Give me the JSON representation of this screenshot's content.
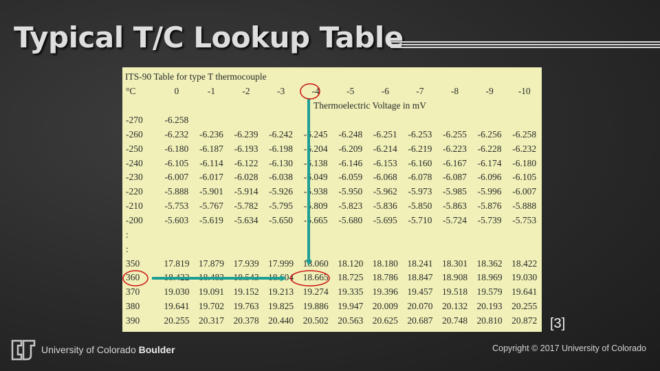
{
  "slide": {
    "title": "Typical T/C Lookup Table",
    "citation": "[3]"
  },
  "table": {
    "caption": "ITS-90 Table for type T thermocouple",
    "header": [
      "°C",
      "0",
      "-1",
      "-2",
      "-3",
      "-4",
      "-5",
      "-6",
      "-7",
      "-8",
      "-9",
      "-10"
    ],
    "unit_caption": "Thermoelectric Voltage in mV",
    "rows": [
      [
        "-270",
        "-6.258",
        "",
        "",
        "",
        "",
        "",
        "",
        "",
        "",
        "",
        ""
      ],
      [
        "-260",
        "-6.232",
        "-6.236",
        "-6.239",
        "-6.242",
        "-6.245",
        "-6.248",
        "-6.251",
        "-6.253",
        "-6.255",
        "-6.256",
        "-6.258"
      ],
      [
        "-250",
        "-6.180",
        "-6.187",
        "-6.193",
        "-6.198",
        "-6.204",
        "-6.209",
        "-6.214",
        "-6.219",
        "-6.223",
        "-6.228",
        "-6.232"
      ],
      [
        "-240",
        "-6.105",
        "-6.114",
        "-6.122",
        "-6.130",
        "-6.138",
        "-6.146",
        "-6.153",
        "-6.160",
        "-6.167",
        "-6.174",
        "-6.180"
      ],
      [
        "-230",
        "-6.007",
        "-6.017",
        "-6.028",
        "-6.038",
        "-6.049",
        "-6.059",
        "-6.068",
        "-6.078",
        "-6.087",
        "-6.096",
        "-6.105"
      ],
      [
        "-220",
        "-5.888",
        "-5.901",
        "-5.914",
        "-5.926",
        "-5.938",
        "-5.950",
        "-5.962",
        "-5.973",
        "-5.985",
        "-5.996",
        "-6.007"
      ],
      [
        "-210",
        "-5.753",
        "-5.767",
        "-5.782",
        "-5.795",
        "-5.809",
        "-5.823",
        "-5.836",
        "-5.850",
        "-5.863",
        "-5.876",
        "-5.888"
      ],
      [
        "-200",
        "-5.603",
        "-5.619",
        "-5.634",
        "-5.650",
        "-5.665",
        "-5.680",
        "-5.695",
        "-5.710",
        "-5.724",
        "-5.739",
        "-5.753"
      ],
      [
        ":",
        "",
        "",
        "",
        "",
        "",
        "",
        "",
        "",
        "",
        "",
        ""
      ],
      [
        ":",
        "",
        "",
        "",
        "",
        "",
        "",
        "",
        "",
        "",
        "",
        ""
      ],
      [
        "350",
        "17.819",
        "17.879",
        "17.939",
        "17.999",
        "18.060",
        "18.120",
        "18.180",
        "18.241",
        "18.301",
        "18.362",
        "18.422"
      ],
      [
        "360",
        "18.422",
        "18.483",
        "18.543",
        "18.604",
        "18.665",
        "18.725",
        "18.786",
        "18.847",
        "18.908",
        "18.969",
        "19.030"
      ],
      [
        "370",
        "19.030",
        "19.091",
        "19.152",
        "19.213",
        "19.274",
        "19.335",
        "19.396",
        "19.457",
        "19.518",
        "19.579",
        "19.641"
      ],
      [
        "380",
        "19.641",
        "19.702",
        "19.763",
        "19.825",
        "19.886",
        "19.947",
        "20.009",
        "20.070",
        "20.132",
        "20.193",
        "20.255"
      ],
      [
        "390",
        "20.255",
        "20.317",
        "20.378",
        "20.440",
        "20.502",
        "20.563",
        "20.625",
        "20.687",
        "20.748",
        "20.810",
        "20.872"
      ]
    ]
  },
  "annotations": {
    "arrow_color": "#1f9e95",
    "circle_color": "#cc1111",
    "circled_values": [
      "-4",
      "360",
      "18.665"
    ]
  },
  "footer": {
    "university": "University of Colorado",
    "campus": "Boulder",
    "copyright": "Copyright © 2017 University of Colorado"
  }
}
